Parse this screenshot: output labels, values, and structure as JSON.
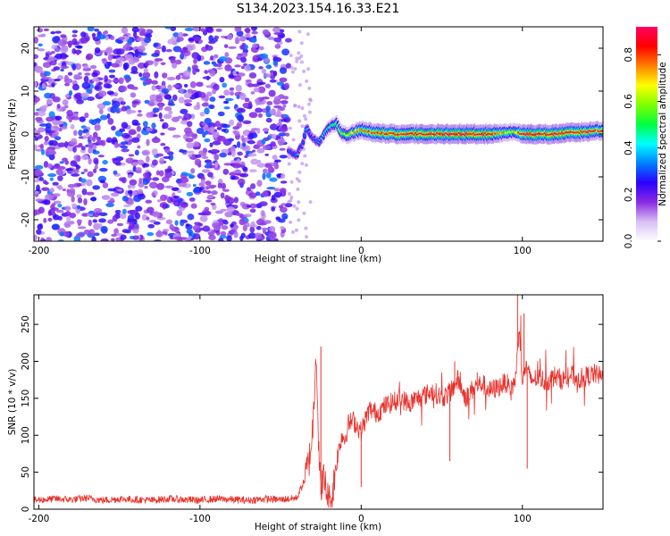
{
  "title": "S134.2023.154.16.33.E21",
  "chart_data": [
    {
      "type": "heatmap",
      "xlabel": "Height of straight line (km)",
      "ylabel": "Frequency (Hz)",
      "xlim": [
        -203,
        150
      ],
      "ylim": [
        -25,
        25
      ],
      "x_ticks": [
        -200,
        -100,
        0,
        100
      ],
      "x_tick_labels": [
        "-200",
        "-100",
        "0",
        "100"
      ],
      "y_ticks": [
        -20,
        -10,
        0,
        10,
        20
      ],
      "y_tick_labels": [
        "-20",
        "-10",
        "0",
        "10",
        "20"
      ],
      "colorbar": {
        "label": "Normalized spectral amplitude",
        "range": [
          0,
          0.92
        ],
        "ticks": [
          0.0,
          0.2,
          0.4,
          0.6,
          0.8
        ],
        "tick_labels": [
          "0.0",
          "0.2",
          "0.4",
          "0.6",
          "0.8"
        ],
        "colormap": [
          "#ffffff",
          "#d8c0f4",
          "#8a2be2",
          "#2a00ff",
          "#0080ff",
          "#00ffff",
          "#00ff40",
          "#80ff00",
          "#ffff00",
          "#ff8000",
          "#ff0000",
          "#ff0060"
        ]
      },
      "noise_region_x": [
        -203,
        -45
      ],
      "signal_trace": {
        "x": [
          -45,
          -40,
          -36,
          -34,
          -30,
          -26,
          -22,
          -18,
          -15,
          -12,
          -8,
          -4,
          0,
          5,
          10,
          20,
          40,
          60,
          80,
          90,
          95,
          100,
          110,
          120,
          130,
          140,
          150
        ],
        "frequency": [
          -4,
          -5,
          -2,
          1.5,
          -1,
          -2,
          0.5,
          2,
          2.5,
          0,
          -0.3,
          0.5,
          1,
          0.5,
          0.2,
          0,
          0,
          0,
          0,
          0.3,
          0.5,
          0,
          0,
          0,
          0.3,
          0.5,
          0.8
        ],
        "amplitude": [
          0.3,
          0.35,
          0.3,
          0.4,
          0.3,
          0.35,
          0.45,
          0.5,
          0.55,
          0.6,
          0.65,
          0.7,
          0.75,
          0.8,
          0.82,
          0.85,
          0.88,
          0.9,
          0.88,
          0.7,
          0.65,
          0.88,
          0.9,
          0.9,
          0.88,
          0.85,
          0.8
        ]
      }
    },
    {
      "type": "line",
      "xlabel": "Height of straight line (km)",
      "ylabel": "SNR (10 * v/v)",
      "xlim": [
        -203,
        150
      ],
      "ylim": [
        0,
        290
      ],
      "x_ticks": [
        -200,
        -100,
        0,
        100
      ],
      "x_tick_labels": [
        "-200",
        "-100",
        "0",
        "100"
      ],
      "y_ticks": [
        0,
        50,
        100,
        150,
        200,
        250
      ],
      "y_tick_labels": [
        "0",
        "50",
        "100",
        "150",
        "200",
        "250"
      ],
      "color": "#e8322c",
      "series": [
        {
          "x": [
            -203,
            -190,
            -180,
            -170,
            -160,
            -150,
            -140,
            -130,
            -120,
            -110,
            -100,
            -90,
            -80,
            -70,
            -60,
            -50,
            -40,
            -35,
            -32,
            -30,
            -28,
            -26,
            -25,
            -24,
            -22,
            -20,
            -18,
            -16,
            -14,
            -12,
            -10,
            -8,
            -5,
            0,
            5,
            10,
            15,
            20,
            25,
            30,
            35,
            40,
            45,
            50,
            55,
            60,
            65,
            70,
            75,
            80,
            85,
            90,
            93,
            96,
            98,
            100,
            102,
            105,
            110,
            115,
            120,
            125,
            130,
            135,
            140,
            145,
            150
          ],
          "y": [
            12,
            14,
            13,
            15,
            12,
            14,
            13,
            12,
            14,
            13,
            12,
            14,
            13,
            12,
            14,
            13,
            15,
            40,
            70,
            110,
            220,
            60,
            20,
            45,
            30,
            10,
            15,
            55,
            80,
            100,
            95,
            115,
            120,
            105,
            135,
            130,
            140,
            145,
            150,
            142,
            150,
            155,
            160,
            150,
            158,
            175,
            150,
            165,
            170,
            160,
            165,
            172,
            160,
            180,
            250,
            170,
            195,
            175,
            178,
            172,
            180,
            175,
            182,
            176,
            180,
            183,
            178
          ]
        }
      ],
      "spikes": [
        {
          "x": -25,
          "y": 220
        },
        {
          "x": 58,
          "y": 200
        },
        {
          "x": 72,
          "y": 185
        },
        {
          "x": 97,
          "y": 290
        },
        {
          "x": 101,
          "y": 265
        },
        {
          "x": 103,
          "y": 55
        },
        {
          "x": 55,
          "y": 65
        },
        {
          "x": 0,
          "y": 30
        }
      ]
    }
  ]
}
